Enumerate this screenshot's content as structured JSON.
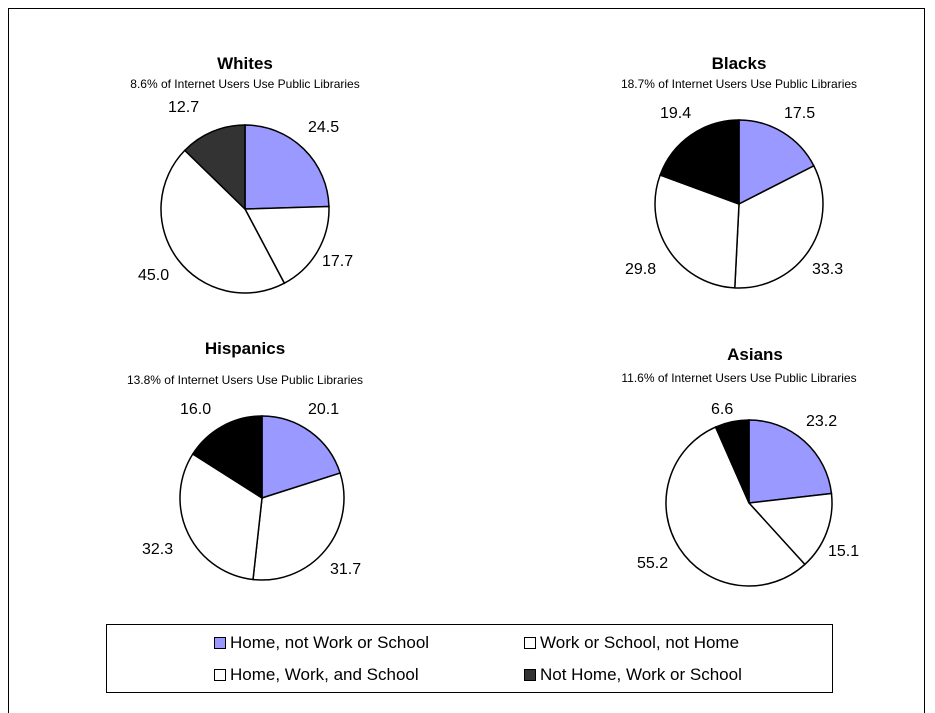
{
  "colors": {
    "home_only": "#9999ff",
    "work_school_only": "#ffffff",
    "home_work_school": "#ffffff",
    "none": "#000000",
    "none_whites": "#333333"
  },
  "chart_data": [
    {
      "type": "pie",
      "title": "Whites",
      "subtitle": "8.6% of Internet Users Use Public Libraries",
      "slices": [
        {
          "label": "Home, not Work or School",
          "value": 24.5,
          "display": "24.5"
        },
        {
          "label": "Work or School, not Home",
          "value": 17.7,
          "display": "17.7"
        },
        {
          "label": "Home, Work, and School",
          "value": 45.0,
          "display": "45.0"
        },
        {
          "label": "Not Home, Work or School",
          "value": 12.7,
          "display": "12.7"
        }
      ]
    },
    {
      "type": "pie",
      "title": "Blacks",
      "subtitle": "18.7% of Internet Users Use Public Libraries",
      "slices": [
        {
          "label": "Home, not Work or School",
          "value": 17.5,
          "display": "17.5"
        },
        {
          "label": "Work or School, not Home",
          "value": 33.3,
          "display": "33.3"
        },
        {
          "label": "Home, Work, and School",
          "value": 29.8,
          "display": "29.8"
        },
        {
          "label": "Not Home, Work or School",
          "value": 19.4,
          "display": "19.4"
        }
      ]
    },
    {
      "type": "pie",
      "title": "Hispanics",
      "subtitle": "13.8% of Internet Users Use Public Libraries",
      "slices": [
        {
          "label": "Home, not Work or School",
          "value": 20.1,
          "display": "20.1"
        },
        {
          "label": "Work or School, not Home",
          "value": 31.7,
          "display": "31.7"
        },
        {
          "label": "Home, Work, and School",
          "value": 32.3,
          "display": "32.3"
        },
        {
          "label": "Not Home, Work or School",
          "value": 16.0,
          "display": "16.0"
        }
      ]
    },
    {
      "type": "pie",
      "title": "Asians",
      "subtitle": "11.6% of Internet Users Use Public Libraries",
      "slices": [
        {
          "label": "Home, not Work or School",
          "value": 23.2,
          "display": "23.2"
        },
        {
          "label": "Work or School, not Home",
          "value": 15.1,
          "display": "15.1"
        },
        {
          "label": "Home, Work, and School",
          "value": 55.2,
          "display": "55.2"
        },
        {
          "label": "Not Home, Work or School",
          "value": 6.6,
          "display": "6.6"
        }
      ]
    }
  ],
  "legend": {
    "placement": "bottom",
    "items": [
      {
        "label": "Home, not Work or School",
        "color": "#9999ff"
      },
      {
        "label": "Work or School, not Home",
        "color": "#ffffff"
      },
      {
        "label": "Home, Work, and School",
        "color": "#ffffff"
      },
      {
        "label": "Not Home, Work or School",
        "color": "#333333"
      }
    ]
  }
}
